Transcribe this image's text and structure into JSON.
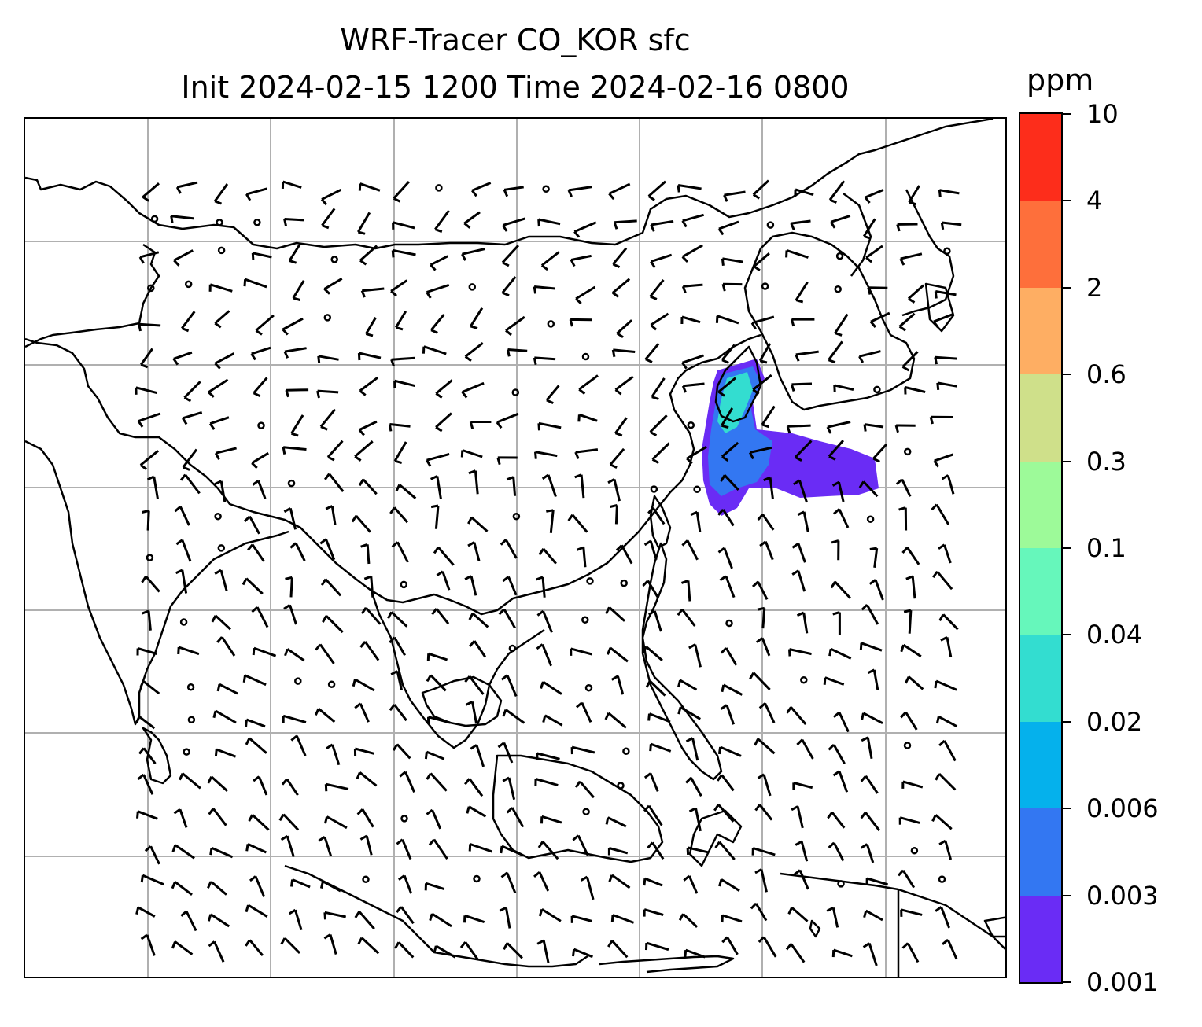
{
  "title": {
    "line1": "WRF-Tracer CO_KOR sfc",
    "line2": "Init 2024-02-15 1200 Time 2024-02-16 0800"
  },
  "colorbar": {
    "units": "ppm",
    "levels": [
      "0.001",
      "0.003",
      "0.006",
      "0.02",
      "0.04",
      "0.1",
      "0.3",
      "0.6",
      "2",
      "4",
      "10"
    ],
    "colors": [
      "#6a2cf5",
      "#3377f2",
      "#05b1ec",
      "#33ddd0",
      "#66f7bb",
      "#9dfa99",
      "#cfe08a",
      "#feae63",
      "#fe6f3b",
      "#fd2d1b"
    ]
  },
  "map": {
    "gridline_color": "#b0b0b0",
    "coastline_color": "#000000",
    "plume_color_low": "#6a2cf5",
    "plume_color_mid": "#3377f2",
    "plume_color_high": "#33ddd0",
    "wind_barbs": "black"
  }
}
